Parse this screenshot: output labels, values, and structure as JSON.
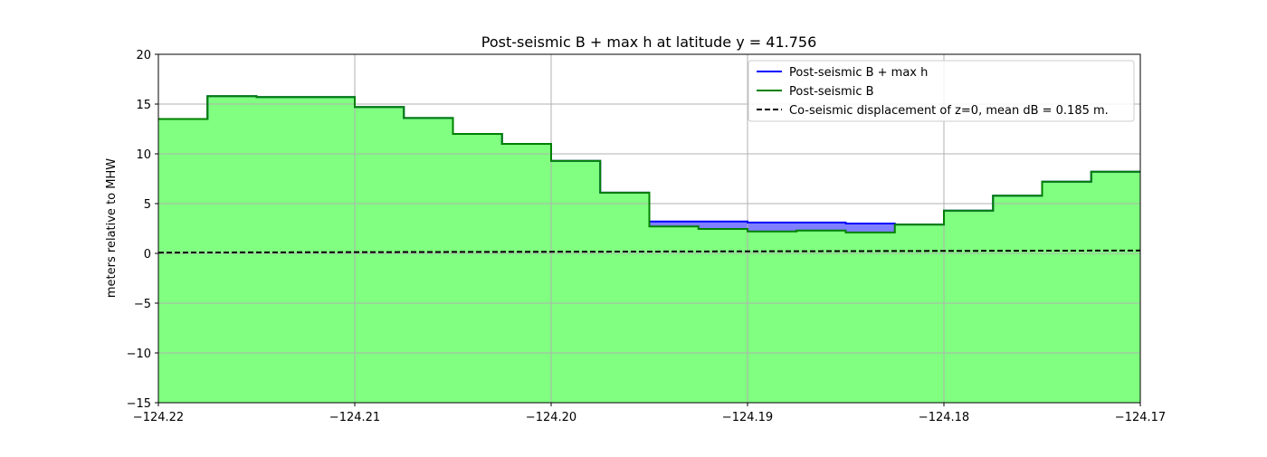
{
  "chart_data": {
    "type": "area",
    "title": "Post-seismic B + max h at latitude y = 41.756",
    "xlabel": "",
    "ylabel": "meters relative to MHW",
    "xlim": [
      -124.22,
      -124.17
    ],
    "ylim": [
      -15,
      20
    ],
    "grid": true,
    "legend_position": "top-right",
    "xticks": [
      -124.22,
      -124.21,
      -124.2,
      -124.19,
      -124.18,
      -124.17
    ],
    "xtick_labels": [
      "−124.22",
      "−124.21",
      "−124.20",
      "−124.19",
      "−124.18",
      "−124.17"
    ],
    "yticks": [
      -15,
      -10,
      -5,
      0,
      5,
      10,
      15,
      20
    ],
    "ytick_labels": [
      "−15",
      "−10",
      "−5",
      "0",
      "5",
      "10",
      "15",
      "20"
    ],
    "step_edges": [
      -124.22,
      -124.2175,
      -124.215,
      -124.2125,
      -124.21,
      -124.2075,
      -124.205,
      -124.2025,
      -124.2,
      -124.1975,
      -124.195,
      -124.1925,
      -124.19,
      -124.1875,
      -124.185,
      -124.1825,
      -124.18,
      -124.1775,
      -124.175,
      -124.1725,
      -124.17
    ],
    "series": [
      {
        "name": "Post-seismic B + max h",
        "color": "#0000ff",
        "fill": "#7f7fff",
        "values": [
          13.5,
          15.8,
          15.7,
          15.7,
          14.7,
          13.6,
          12.0,
          11.0,
          9.3,
          6.1,
          3.2,
          3.2,
          3.1,
          3.1,
          3.0,
          2.9,
          4.3,
          5.8,
          7.2,
          8.2
        ]
      },
      {
        "name": "Post-seismic B",
        "color": "#008000",
        "fill": "#80ff80",
        "values": [
          13.5,
          15.8,
          15.7,
          15.7,
          14.7,
          13.6,
          12.0,
          11.0,
          9.3,
          6.1,
          2.7,
          2.45,
          2.2,
          2.3,
          2.1,
          2.9,
          4.3,
          5.8,
          7.2,
          8.2
        ]
      },
      {
        "name": "Co-seismic displacement of z=0, mean dB = 0.185 m.",
        "color": "#000000",
        "dashed": true,
        "x": [
          -124.22,
          -124.17
        ],
        "values": [
          0.08,
          0.29
        ]
      }
    ]
  }
}
